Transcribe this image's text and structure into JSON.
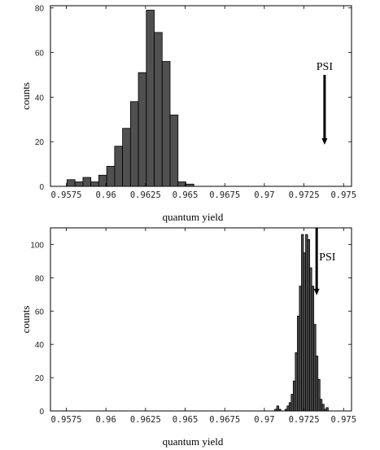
{
  "chart_data": [
    {
      "type": "bar",
      "title": "",
      "xlabel": "quantum yield",
      "ylabel": "counts",
      "xlim": [
        0.9565,
        0.9755
      ],
      "ylim": [
        0,
        81
      ],
      "xticks": [
        0.9575,
        0.96,
        0.9625,
        0.965,
        0.9675,
        0.97,
        0.9725,
        0.975
      ],
      "xtick_labels": [
        "0.9575",
        "0.96",
        "0.9625",
        "0.965",
        "0.9675",
        "0.97",
        "0.9725",
        "0.975"
      ],
      "yticks": [
        0,
        20,
        40,
        60,
        80
      ],
      "ytick_labels": [
        "0",
        "20",
        "40",
        "60",
        "80"
      ],
      "bin_width": 0.0005,
      "bins": [
        {
          "x0": 0.95755,
          "value": 3
        },
        {
          "x0": 0.95805,
          "value": 2
        },
        {
          "x0": 0.95855,
          "value": 4
        },
        {
          "x0": 0.95905,
          "value": 2
        },
        {
          "x0": 0.95955,
          "value": 5
        },
        {
          "x0": 0.96005,
          "value": 9
        },
        {
          "x0": 0.96055,
          "value": 18
        },
        {
          "x0": 0.96105,
          "value": 26
        },
        {
          "x0": 0.96155,
          "value": 38
        },
        {
          "x0": 0.96205,
          "value": 51
        },
        {
          "x0": 0.96255,
          "value": 79
        },
        {
          "x0": 0.96305,
          "value": 69
        },
        {
          "x0": 0.96355,
          "value": 56
        },
        {
          "x0": 0.96405,
          "value": 32
        },
        {
          "x0": 0.96455,
          "value": 2
        },
        {
          "x0": 0.96505,
          "value": 1
        }
      ],
      "annotation": {
        "text": "PSI",
        "x": 0.9738,
        "arrow_from": 50,
        "arrow_to": 19
      },
      "grid": false
    },
    {
      "type": "bar",
      "title": "",
      "xlabel": "quantum yield",
      "ylabel": "counts",
      "xlim": [
        0.9565,
        0.9755
      ],
      "ylim": [
        0,
        110
      ],
      "xticks": [
        0.9575,
        0.96,
        0.9625,
        0.965,
        0.9675,
        0.97,
        0.9725,
        0.975
      ],
      "xtick_labels": [
        "0.9575",
        "0.96",
        "0.9625",
        "0.965",
        "0.9675",
        "0.97",
        "0.9725",
        "0.975"
      ],
      "yticks": [
        0,
        20,
        40,
        60,
        80,
        100
      ],
      "ytick_labels": [
        "0",
        "20",
        "40",
        "60",
        "80",
        "100"
      ],
      "bin_width": 0.00013,
      "bins": [
        {
          "x0": 0.97065,
          "value": 1
        },
        {
          "x0": 0.97078,
          "value": 3
        },
        {
          "x0": 0.97091,
          "value": 1
        },
        {
          "x0": 0.97104,
          "value": 0
        },
        {
          "x0": 0.97117,
          "value": 0
        },
        {
          "x0": 0.9713,
          "value": 1
        },
        {
          "x0": 0.97143,
          "value": 3
        },
        {
          "x0": 0.97156,
          "value": 5
        },
        {
          "x0": 0.97169,
          "value": 10
        },
        {
          "x0": 0.97182,
          "value": 18
        },
        {
          "x0": 0.97195,
          "value": 35
        },
        {
          "x0": 0.97208,
          "value": 57
        },
        {
          "x0": 0.97221,
          "value": 75
        },
        {
          "x0": 0.97234,
          "value": 106
        },
        {
          "x0": 0.97247,
          "value": 95
        },
        {
          "x0": 0.9726,
          "value": 106
        },
        {
          "x0": 0.97273,
          "value": 103
        },
        {
          "x0": 0.97286,
          "value": 86
        },
        {
          "x0": 0.97299,
          "value": 75
        },
        {
          "x0": 0.97312,
          "value": 52
        },
        {
          "x0": 0.97325,
          "value": 33
        },
        {
          "x0": 0.97338,
          "value": 19
        },
        {
          "x0": 0.97351,
          "value": 7
        },
        {
          "x0": 0.97364,
          "value": 4
        },
        {
          "x0": 0.97377,
          "value": 1
        },
        {
          "x0": 0.9739,
          "value": 2
        }
      ],
      "annotation": {
        "text": "PSI",
        "x": 0.9733,
        "arrow_from": 110,
        "arrow_to": 70
      },
      "grid": false
    }
  ]
}
